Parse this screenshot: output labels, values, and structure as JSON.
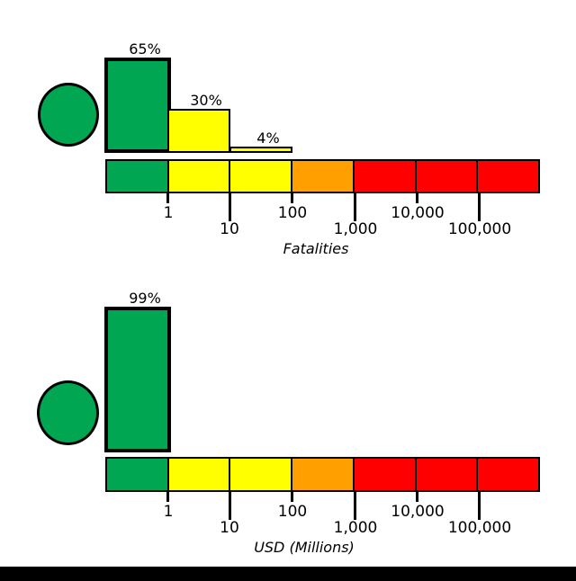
{
  "colors": {
    "green": "#00A651",
    "yellow": "#FFFF00",
    "orange": "#FFA000",
    "red": "#FF0000",
    "outline": "#000000",
    "background": "#FFFFFF"
  },
  "panels": [
    {
      "axis_label": "Fatalities",
      "alert_level": "green",
      "bars": [
        {
          "label": "65%"
        },
        {
          "label": "30%"
        },
        {
          "label": "4%"
        }
      ],
      "ticks_row1": [
        "1",
        "100",
        "10,000"
      ],
      "ticks_row2": [
        "10",
        "1,000",
        "100,000"
      ]
    },
    {
      "axis_label": "USD (Millions)",
      "alert_level": "green",
      "bars": [
        {
          "label": "99%"
        }
      ],
      "ticks_row1": [
        "1",
        "100",
        "10,000"
      ],
      "ticks_row2": [
        "10",
        "1,000",
        "100,000"
      ]
    }
  ],
  "chart_data": [
    {
      "type": "bar",
      "title": "",
      "xlabel": "Fatalities",
      "ylabel": "",
      "x_scale": "log",
      "bins": [
        "<1",
        "1-10",
        "10-100",
        "100-1,000",
        "1,000-10,000",
        "10,000-100,000",
        ">100,000"
      ],
      "values_percent": [
        65,
        30,
        4,
        0,
        0,
        0,
        0
      ],
      "bar_fill_colors": [
        "green",
        "yellow",
        "yellow",
        "orange",
        "red",
        "red",
        "red"
      ],
      "scale_colors": [
        "green",
        "yellow",
        "yellow",
        "orange",
        "red",
        "red",
        "red"
      ],
      "x_tick_labels": [
        "1",
        "10",
        "100",
        "1,000",
        "10,000",
        "100,000"
      ],
      "highlighted_bin": "<1",
      "alert_level_marker": "green circle",
      "grid": false,
      "legend": "none"
    },
    {
      "type": "bar",
      "title": "",
      "xlabel": "USD (Millions)",
      "ylabel": "",
      "x_scale": "log",
      "bins": [
        "<1",
        "1-10",
        "10-100",
        "100-1,000",
        "1,000-10,000",
        "10,000-100,000",
        ">100,000"
      ],
      "values_percent": [
        99,
        0,
        0,
        0,
        0,
        0,
        0
      ],
      "bar_fill_colors": [
        "green",
        "yellow",
        "yellow",
        "orange",
        "red",
        "red",
        "red"
      ],
      "scale_colors": [
        "green",
        "yellow",
        "yellow",
        "orange",
        "red",
        "red",
        "red"
      ],
      "x_tick_labels": [
        "1",
        "10",
        "100",
        "1,000",
        "10,000",
        "100,000"
      ],
      "highlighted_bin": "<1",
      "alert_level_marker": "green circle",
      "grid": false,
      "legend": "none"
    }
  ]
}
